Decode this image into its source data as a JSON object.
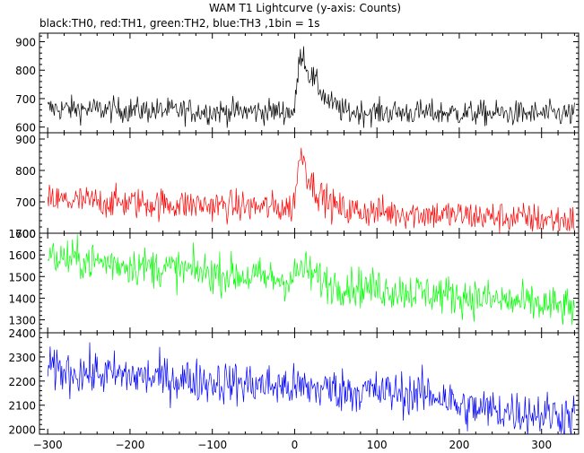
{
  "chart_data": {
    "type": "line",
    "title": "WAM T1 Lightcurve (y-axis: Counts)",
    "subtitle": "black:TH0, red:TH1, green:TH2, blue:TH3 ,1bin = 1s",
    "x_range": [
      -310,
      345
    ],
    "x_ticks": [
      -300,
      -200,
      -100,
      0,
      100,
      200,
      300
    ],
    "panels": [
      {
        "series_label": "TH0",
        "color": "#000000",
        "ylim": [
          580,
          930
        ],
        "yticks": [
          600,
          700,
          800,
          900
        ],
        "baseline": [
          [
            -300,
            665
          ],
          [
            -100,
            655
          ],
          [
            0,
            655
          ],
          [
            345,
            645
          ]
        ],
        "noise": 22,
        "peaks": [
          {
            "x": 0,
            "value": 655
          },
          {
            "x": 5,
            "value": 820
          },
          {
            "x": 10,
            "value": 870
          },
          {
            "x": 15,
            "value": 800
          },
          {
            "x": 25,
            "value": 760
          },
          {
            "x": 40,
            "value": 690
          },
          {
            "x": 60,
            "value": 655
          }
        ]
      },
      {
        "series_label": "TH1",
        "color": "#ff0000",
        "ylim": [
          600,
          920
        ],
        "yticks": [
          600,
          700,
          800,
          900
        ],
        "baseline": [
          [
            -300,
            705
          ],
          [
            0,
            680
          ],
          [
            345,
            640
          ]
        ],
        "noise": 25,
        "peaks": [
          {
            "x": -2,
            "value": 680
          },
          {
            "x": 5,
            "value": 820
          },
          {
            "x": 10,
            "value": 860
          },
          {
            "x": 15,
            "value": 790
          },
          {
            "x": 25,
            "value": 740
          },
          {
            "x": 45,
            "value": 690
          },
          {
            "x": 60,
            "value": 675
          }
        ]
      },
      {
        "series_label": "TH2",
        "color": "#00ff00",
        "ylim": [
          1240,
          1700
        ],
        "yticks": [
          1300,
          1400,
          1500,
          1600,
          1700
        ],
        "baseline": [
          [
            -300,
            1590
          ],
          [
            0,
            1480
          ],
          [
            200,
            1410
          ],
          [
            345,
            1350
          ]
        ],
        "noise": 45,
        "peaks": [
          {
            "x": -5,
            "value": 1480
          },
          {
            "x": 8,
            "value": 1540
          },
          {
            "x": 25,
            "value": 1500
          },
          {
            "x": 40,
            "value": 1470
          }
        ]
      },
      {
        "series_label": "TH3",
        "color": "#0000ff",
        "ylim": [
          1980,
          2400
        ],
        "yticks": [
          2000,
          2100,
          2200,
          2300,
          2400
        ],
        "baseline": [
          [
            -300,
            2245
          ],
          [
            0,
            2175
          ],
          [
            180,
            2140
          ],
          [
            200,
            2090
          ],
          [
            345,
            2055
          ]
        ],
        "noise": 45,
        "peaks": []
      }
    ]
  }
}
